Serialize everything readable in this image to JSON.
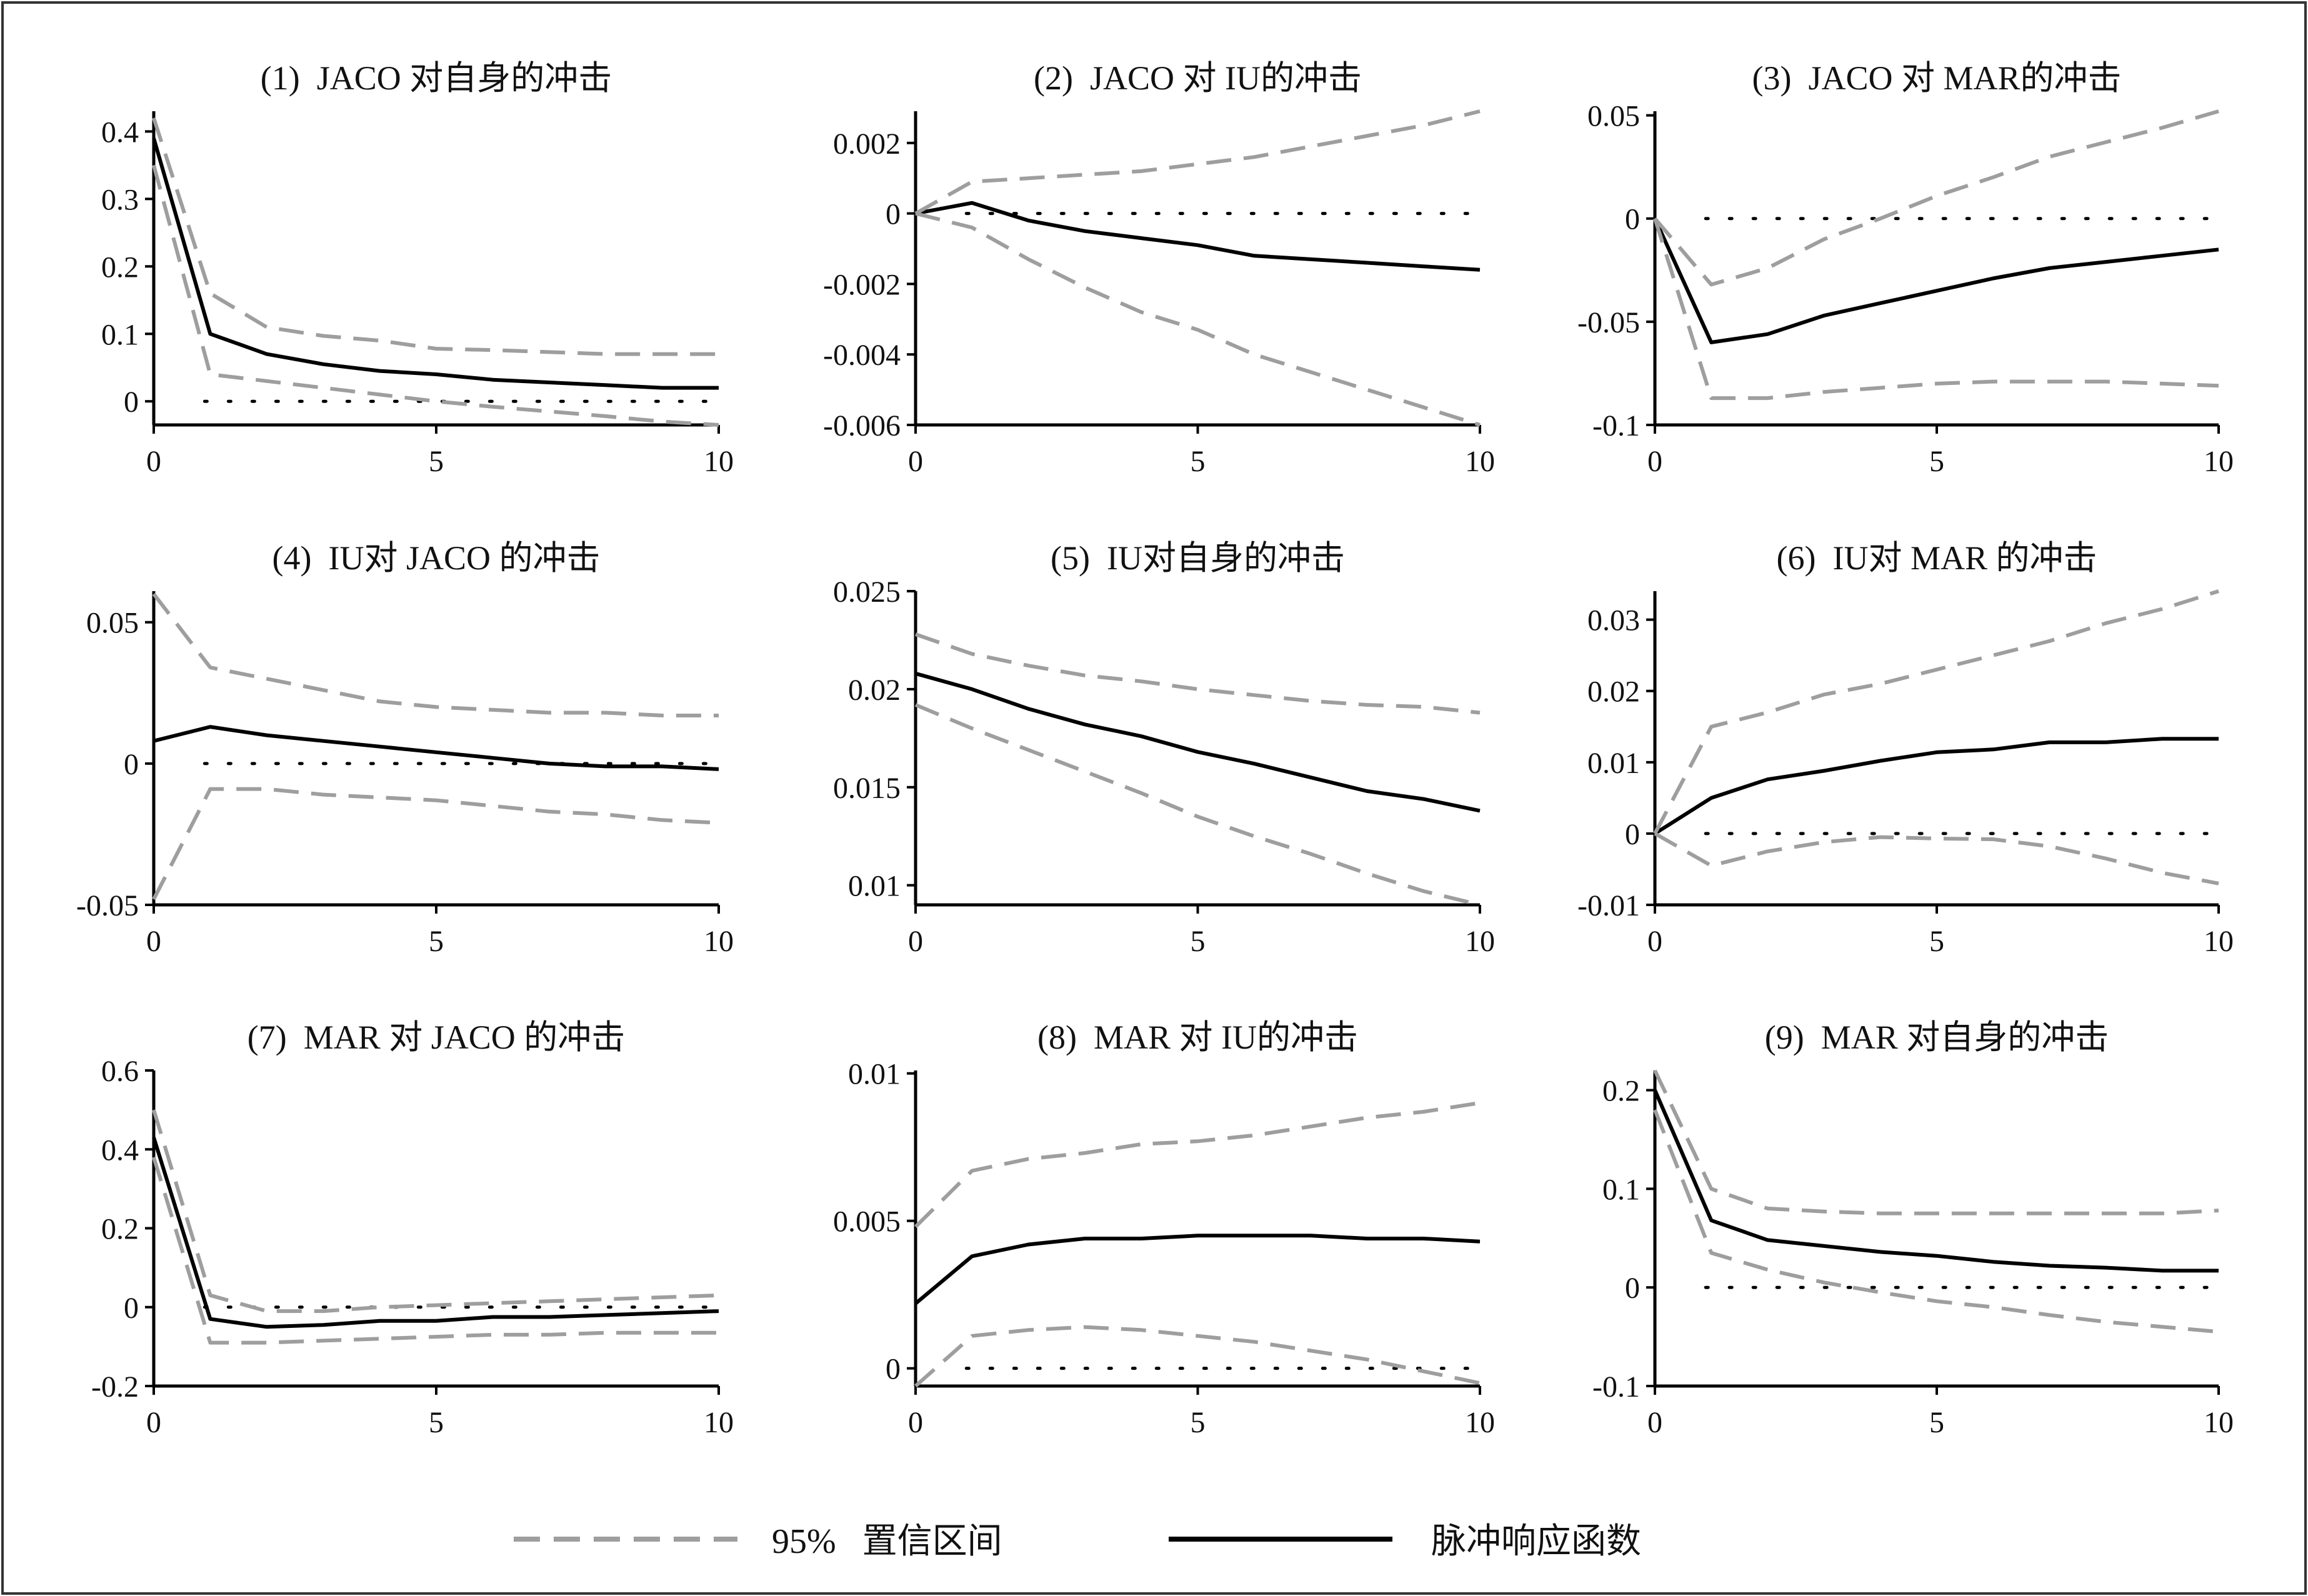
{
  "colors": {
    "background": "#ffffff",
    "frame": "#333333",
    "axis": "#000000",
    "impulse": "#000000",
    "confidence": "#9e9e9e",
    "zero_line": "#000000"
  },
  "legend": {
    "ci_label": "95%   置信区间",
    "irf_label": "脉冲响应函数"
  },
  "chart_data": [
    {
      "type": "line",
      "title": "(1)  JACO 对自身的冲击",
      "x": [
        0,
        1,
        2,
        3,
        4,
        5,
        6,
        7,
        8,
        9,
        10
      ],
      "xlim": [
        0,
        10
      ],
      "xticks": [
        0,
        5,
        10
      ],
      "ylim": [
        -0.035,
        0.43
      ],
      "yticks": [
        0,
        0.1,
        0.2,
        0.3,
        0.4
      ],
      "ytick_labels": [
        "0",
        "0.1",
        "0.2",
        "0.3",
        "0.4"
      ],
      "series": [
        {
          "role": "impulse",
          "values": [
            0.39,
            0.1,
            0.07,
            0.055,
            0.045,
            0.04,
            0.032,
            0.028,
            0.024,
            0.02,
            0.02
          ]
        },
        {
          "role": "upper",
          "values": [
            0.42,
            0.16,
            0.11,
            0.097,
            0.09,
            0.078,
            0.076,
            0.073,
            0.07,
            0.07,
            0.07
          ]
        },
        {
          "role": "lower",
          "values": [
            0.35,
            0.04,
            0.03,
            0.02,
            0.01,
            0.0,
            -0.008,
            -0.015,
            -0.022,
            -0.03,
            -0.035
          ]
        }
      ]
    },
    {
      "type": "line",
      "title": "(2)  JACO 对 IU的冲击",
      "x": [
        0,
        1,
        2,
        3,
        4,
        5,
        6,
        7,
        8,
        9,
        10
      ],
      "xlim": [
        0,
        10
      ],
      "xticks": [
        0,
        5,
        10
      ],
      "ylim": [
        -0.006,
        0.0029
      ],
      "yticks": [
        0.002,
        0,
        -0.002,
        -0.004,
        -0.006
      ],
      "ytick_labels": [
        "0.002",
        "0",
        "-0.002",
        "-0.004",
        "-0.006"
      ],
      "series": [
        {
          "role": "impulse",
          "values": [
            0.0,
            0.0003,
            -0.0002,
            -0.0005,
            -0.0007,
            -0.0009,
            -0.0012,
            -0.0013,
            -0.0014,
            -0.0015,
            -0.0016
          ]
        },
        {
          "role": "upper",
          "values": [
            0.0,
            0.0009,
            0.001,
            0.0011,
            0.0012,
            0.0014,
            0.0016,
            0.0019,
            0.0022,
            0.0025,
            0.0029
          ]
        },
        {
          "role": "lower",
          "values": [
            0.0,
            -0.0004,
            -0.0013,
            -0.0021,
            -0.0028,
            -0.0033,
            -0.004,
            -0.0045,
            -0.005,
            -0.0055,
            -0.006
          ]
        }
      ]
    },
    {
      "type": "line",
      "title": "(3)  JACO 对 MAR的冲击",
      "x": [
        0,
        1,
        2,
        3,
        4,
        5,
        6,
        7,
        8,
        9,
        10
      ],
      "xlim": [
        0,
        10
      ],
      "xticks": [
        0,
        5,
        10
      ],
      "ylim": [
        -0.1,
        0.052
      ],
      "yticks": [
        0.05,
        0,
        -0.05,
        -0.1
      ],
      "ytick_labels": [
        "0.05",
        "0",
        "-0.05",
        "-0.1"
      ],
      "series": [
        {
          "role": "impulse",
          "values": [
            0.0,
            -0.06,
            -0.056,
            -0.047,
            -0.041,
            -0.035,
            -0.029,
            -0.024,
            -0.021,
            -0.018,
            -0.015
          ]
        },
        {
          "role": "upper",
          "values": [
            0.0,
            -0.032,
            -0.024,
            -0.01,
            0.0,
            0.011,
            0.02,
            0.03,
            0.037,
            0.044,
            0.052
          ]
        },
        {
          "role": "lower",
          "values": [
            0.0,
            -0.087,
            -0.087,
            -0.084,
            -0.082,
            -0.08,
            -0.079,
            -0.079,
            -0.079,
            -0.08,
            -0.081
          ]
        }
      ]
    },
    {
      "type": "line",
      "title": "(4)  IU对 JACO 的冲击",
      "x": [
        0,
        1,
        2,
        3,
        4,
        5,
        6,
        7,
        8,
        9,
        10
      ],
      "xlim": [
        0,
        10
      ],
      "xticks": [
        0,
        5,
        10
      ],
      "ylim": [
        -0.05,
        0.061
      ],
      "yticks": [
        0.05,
        0,
        -0.05
      ],
      "ytick_labels": [
        "0.05",
        "0",
        "-0.05"
      ],
      "series": [
        {
          "role": "impulse",
          "values": [
            0.008,
            0.013,
            0.01,
            0.008,
            0.006,
            0.004,
            0.002,
            0.0,
            -0.001,
            -0.001,
            -0.002
          ]
        },
        {
          "role": "upper",
          "values": [
            0.06,
            0.034,
            0.03,
            0.026,
            0.022,
            0.02,
            0.019,
            0.018,
            0.018,
            0.017,
            0.017
          ]
        },
        {
          "role": "lower",
          "values": [
            -0.048,
            -0.009,
            -0.009,
            -0.011,
            -0.012,
            -0.013,
            -0.015,
            -0.017,
            -0.018,
            -0.02,
            -0.021
          ]
        }
      ]
    },
    {
      "type": "line",
      "title": "(5)  IU对自身的冲击",
      "x": [
        0,
        1,
        2,
        3,
        4,
        5,
        6,
        7,
        8,
        9,
        10
      ],
      "xlim": [
        0,
        10
      ],
      "xticks": [
        0,
        5,
        10
      ],
      "ylim": [
        0.009,
        0.025
      ],
      "yticks": [
        0.025,
        0.02,
        0.015,
        0.01
      ],
      "ytick_labels": [
        "0.025",
        "0.02",
        "0.015",
        "0.01"
      ],
      "series": [
        {
          "role": "impulse",
          "values": [
            0.0208,
            0.02,
            0.019,
            0.0182,
            0.0176,
            0.0168,
            0.0162,
            0.0155,
            0.0148,
            0.0144,
            0.0138
          ]
        },
        {
          "role": "upper",
          "values": [
            0.0228,
            0.0218,
            0.0212,
            0.0207,
            0.0204,
            0.02,
            0.0197,
            0.0194,
            0.0192,
            0.0191,
            0.0188
          ]
        },
        {
          "role": "lower",
          "values": [
            0.0192,
            0.018,
            0.0169,
            0.0158,
            0.0147,
            0.0135,
            0.0125,
            0.0116,
            0.0106,
            0.0097,
            0.009
          ]
        }
      ]
    },
    {
      "type": "line",
      "title": "(6)  IU对 MAR 的冲击",
      "x": [
        0,
        1,
        2,
        3,
        4,
        5,
        6,
        7,
        8,
        9,
        10
      ],
      "xlim": [
        0,
        10
      ],
      "xticks": [
        0,
        5,
        10
      ],
      "ylim": [
        -0.01,
        0.034
      ],
      "yticks": [
        0.03,
        0.02,
        0.01,
        0,
        -0.01
      ],
      "ytick_labels": [
        "0.03",
        "0.02",
        "0.01",
        "0",
        "-0.01"
      ],
      "series": [
        {
          "role": "impulse",
          "values": [
            0.0,
            0.005,
            0.0076,
            0.0088,
            0.0102,
            0.0114,
            0.0118,
            0.0128,
            0.0128,
            0.0133,
            0.0133
          ]
        },
        {
          "role": "upper",
          "values": [
            0.0,
            0.015,
            0.017,
            0.0195,
            0.021,
            0.023,
            0.025,
            0.027,
            0.0295,
            0.0315,
            0.034
          ]
        },
        {
          "role": "lower",
          "values": [
            0.0,
            -0.0045,
            -0.0025,
            -0.0012,
            -0.0005,
            -0.0007,
            -0.0008,
            -0.0018,
            -0.0035,
            -0.0055,
            -0.007
          ]
        }
      ]
    },
    {
      "type": "line",
      "title": "(7)  MAR 对 JACO 的冲击",
      "x": [
        0,
        1,
        2,
        3,
        4,
        5,
        6,
        7,
        8,
        9,
        10
      ],
      "xlim": [
        0,
        10
      ],
      "xticks": [
        0,
        5,
        10
      ],
      "ylim": [
        -0.2,
        0.6
      ],
      "yticks": [
        0.6,
        0.4,
        0.2,
        0,
        -0.2
      ],
      "ytick_labels": [
        "0.6",
        "0.4",
        "0.2",
        "0",
        "-0.2"
      ],
      "series": [
        {
          "role": "impulse",
          "values": [
            0.43,
            -0.03,
            -0.05,
            -0.045,
            -0.035,
            -0.035,
            -0.025,
            -0.025,
            -0.02,
            -0.015,
            -0.01
          ]
        },
        {
          "role": "upper",
          "values": [
            0.5,
            0.03,
            -0.01,
            -0.01,
            0.0,
            0.005,
            0.01,
            0.015,
            0.02,
            0.025,
            0.03
          ]
        },
        {
          "role": "lower",
          "values": [
            0.38,
            -0.09,
            -0.09,
            -0.085,
            -0.08,
            -0.075,
            -0.07,
            -0.07,
            -0.065,
            -0.065,
            -0.065
          ]
        }
      ]
    },
    {
      "type": "line",
      "title": "(8)  MAR 对 IU的冲击",
      "x": [
        0,
        1,
        2,
        3,
        4,
        5,
        6,
        7,
        8,
        9,
        10
      ],
      "xlim": [
        0,
        10
      ],
      "xticks": [
        0,
        5,
        10
      ],
      "ylim": [
        -0.0006,
        0.0101
      ],
      "yticks": [
        0.01,
        0.005,
        0
      ],
      "ytick_labels": [
        "0.01",
        "0.005",
        "0"
      ],
      "series": [
        {
          "role": "impulse",
          "values": [
            0.0022,
            0.0038,
            0.0042,
            0.0044,
            0.0044,
            0.0045,
            0.0045,
            0.0045,
            0.0044,
            0.0044,
            0.0043
          ]
        },
        {
          "role": "upper",
          "values": [
            0.0048,
            0.0067,
            0.0071,
            0.0073,
            0.0076,
            0.0077,
            0.0079,
            0.0082,
            0.0085,
            0.0087,
            0.009
          ]
        },
        {
          "role": "lower",
          "values": [
            -0.0006,
            0.0011,
            0.0013,
            0.0014,
            0.0013,
            0.0011,
            0.0009,
            0.0006,
            0.0003,
            -0.0001,
            -0.0005
          ]
        }
      ]
    },
    {
      "type": "line",
      "title": "(9)  MAR 对自身的冲击",
      "x": [
        0,
        1,
        2,
        3,
        4,
        5,
        6,
        7,
        8,
        9,
        10
      ],
      "xlim": [
        0,
        10
      ],
      "xticks": [
        0,
        5,
        10
      ],
      "ylim": [
        -0.1,
        0.22
      ],
      "yticks": [
        0.2,
        0.1,
        0,
        -0.1
      ],
      "ytick_labels": [
        "0.2",
        "0.1",
        "0",
        "-0.1"
      ],
      "series": [
        {
          "role": "impulse",
          "values": [
            0.2,
            0.068,
            0.048,
            0.042,
            0.036,
            0.032,
            0.026,
            0.022,
            0.02,
            0.017,
            0.017
          ]
        },
        {
          "role": "upper",
          "values": [
            0.22,
            0.1,
            0.08,
            0.077,
            0.075,
            0.075,
            0.075,
            0.075,
            0.075,
            0.075,
            0.078
          ]
        },
        {
          "role": "lower",
          "values": [
            0.18,
            0.035,
            0.018,
            0.005,
            -0.005,
            -0.014,
            -0.02,
            -0.028,
            -0.035,
            -0.04,
            -0.045
          ]
        }
      ]
    }
  ]
}
